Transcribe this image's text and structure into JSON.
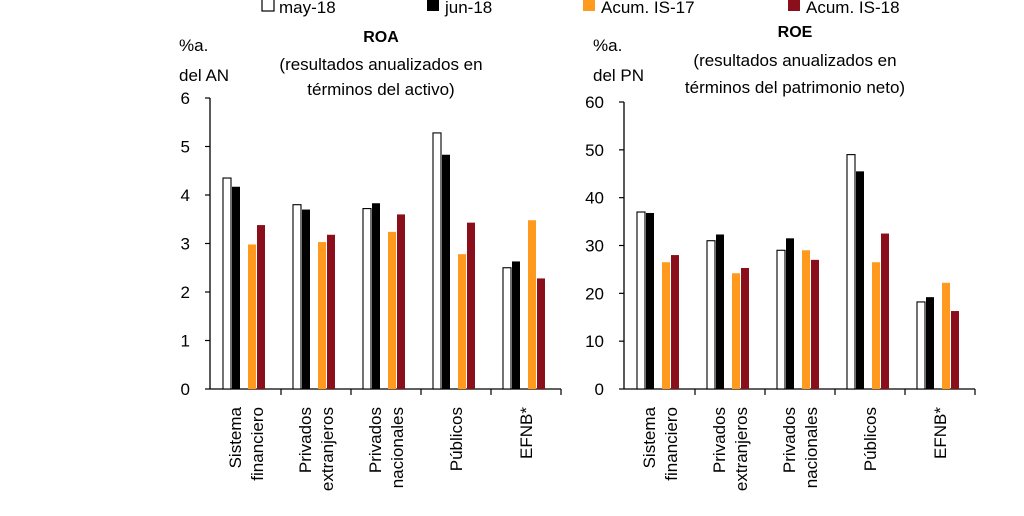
{
  "legend": [
    {
      "label": "may-18",
      "color": "#ffffff",
      "stroke": "#000000"
    },
    {
      "label": "jun-18",
      "color": "#000000",
      "stroke": "#000000"
    },
    {
      "label": "Acum. IS-17",
      "color": "#ff9a1f",
      "stroke": "#ff9a1f"
    },
    {
      "label": "Acum. IS-18",
      "color": "#8b0f1a",
      "stroke": "#8b0f1a"
    }
  ],
  "chart_data": [
    {
      "type": "bar",
      "title": "ROA",
      "subtitle_lines": [
        "(resultados anualizados en",
        "términos del activo)"
      ],
      "ylabel_lines": [
        "%a.",
        "del AN"
      ],
      "ylim": [
        0,
        6
      ],
      "yticks": [
        "0",
        "1",
        "2",
        "3",
        "4",
        "5",
        "6"
      ],
      "categories": [
        [
          "Sistema",
          "financiero"
        ],
        [
          "Privados",
          "extranjeros"
        ],
        [
          "Privados",
          "nacionales"
        ],
        [
          "Públicos"
        ],
        [
          "EFNB*"
        ]
      ],
      "series": [
        {
          "name": "may-18",
          "values": [
            4.35,
            3.8,
            3.72,
            5.28,
            2.5
          ]
        },
        {
          "name": "jun-18",
          "values": [
            4.17,
            3.7,
            3.83,
            4.83,
            2.63
          ]
        },
        {
          "name": "Acum. IS-17",
          "values": [
            2.98,
            3.03,
            3.24,
            2.78,
            3.48
          ]
        },
        {
          "name": "Acum. IS-18",
          "values": [
            3.38,
            3.18,
            3.6,
            3.43,
            2.28
          ]
        }
      ]
    },
    {
      "type": "bar",
      "title": "ROE",
      "subtitle_lines": [
        "(resultados anualizados en",
        "términos del patrimonio neto)"
      ],
      "ylabel_lines": [
        "%a.",
        "del PN"
      ],
      "ylim": [
        0,
        60
      ],
      "yticks": [
        "0",
        "10",
        "20",
        "30",
        "40",
        "50",
        "60"
      ],
      "categories": [
        [
          "Sistema",
          "financiero"
        ],
        [
          "Privados",
          "extranjeros"
        ],
        [
          "Privados",
          "nacionales"
        ],
        [
          "Públicos"
        ],
        [
          "EFNB*"
        ]
      ],
      "series": [
        {
          "name": "may-18",
          "values": [
            37,
            31,
            29,
            49,
            18.2
          ]
        },
        {
          "name": "jun-18",
          "values": [
            36.8,
            32.3,
            31.5,
            45.5,
            19.2
          ]
        },
        {
          "name": "Acum. IS-17",
          "values": [
            26.5,
            24.2,
            29,
            26.5,
            22.2
          ]
        },
        {
          "name": "Acum. IS-18",
          "values": [
            28,
            25.3,
            27,
            32.5,
            16.3
          ]
        }
      ]
    }
  ]
}
